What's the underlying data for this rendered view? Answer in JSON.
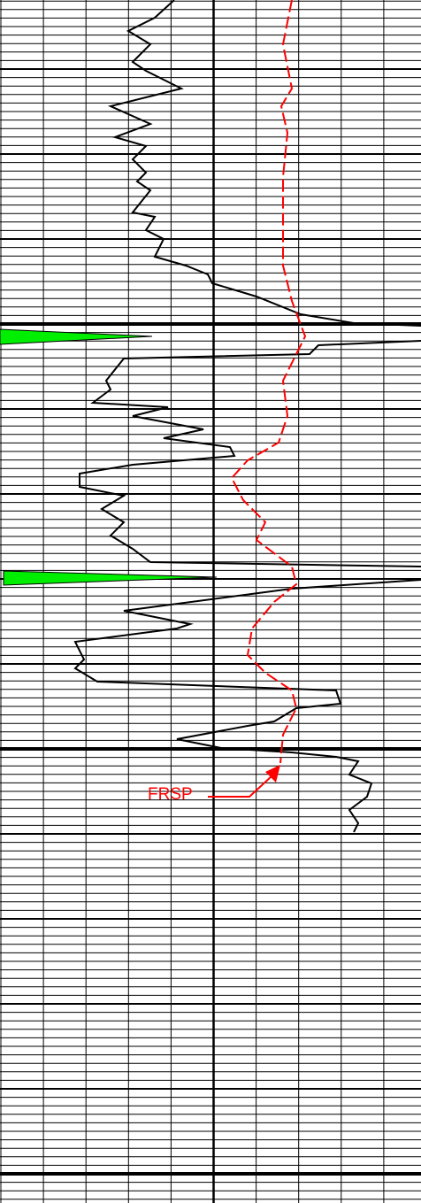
{
  "annotation": {
    "label": "FRSP"
  }
}
